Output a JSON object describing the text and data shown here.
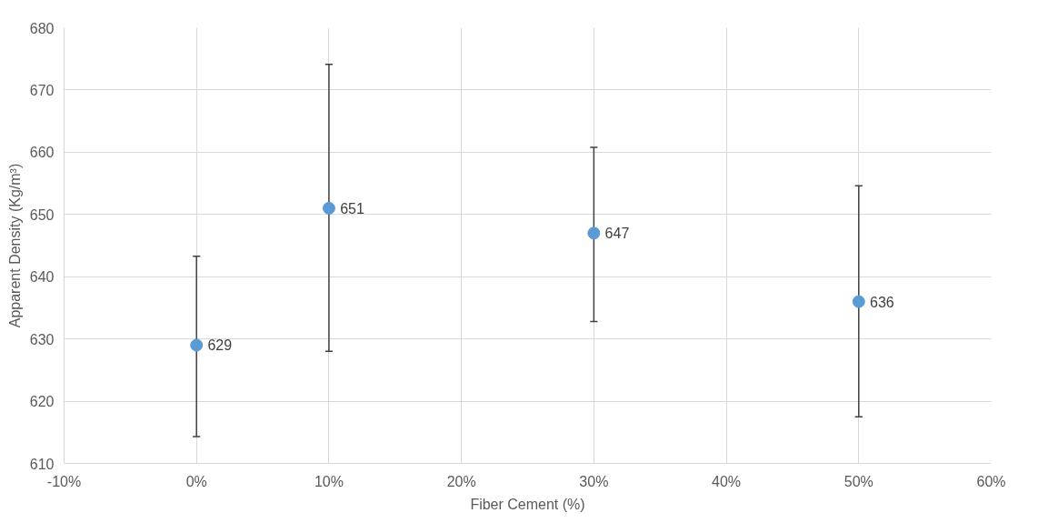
{
  "chart_data": {
    "type": "scatter",
    "xlabel": "Fiber Cement (%)",
    "ylabel": "Apparent Density (Kg/m³)",
    "x": [
      0,
      10,
      30,
      50
    ],
    "series": [
      {
        "color": "#5b9bd5",
        "values": [
          629,
          651,
          647,
          636
        ],
        "errors": [
          [
            614.3,
            643.3
          ],
          [
            628.0,
            674.1
          ],
          [
            632.8,
            660.8
          ],
          [
            617.5,
            654.6
          ]
        ]
      }
    ],
    "data_labels": true,
    "marker": "circle",
    "grid": true,
    "xlim": [
      -10,
      60
    ],
    "xticks": [
      {
        "value": -10,
        "label": "-10%"
      },
      {
        "value": 0,
        "label": "0%"
      },
      {
        "value": 10,
        "label": "10%"
      },
      {
        "value": 20,
        "label": "20%"
      },
      {
        "value": 30,
        "label": "30%"
      },
      {
        "value": 40,
        "label": "40%"
      },
      {
        "value": 50,
        "label": "50%"
      },
      {
        "value": 60,
        "label": "60%"
      }
    ],
    "ylim": [
      610,
      680
    ],
    "yticks": [
      610,
      620,
      630,
      640,
      650,
      660,
      670,
      680
    ]
  }
}
